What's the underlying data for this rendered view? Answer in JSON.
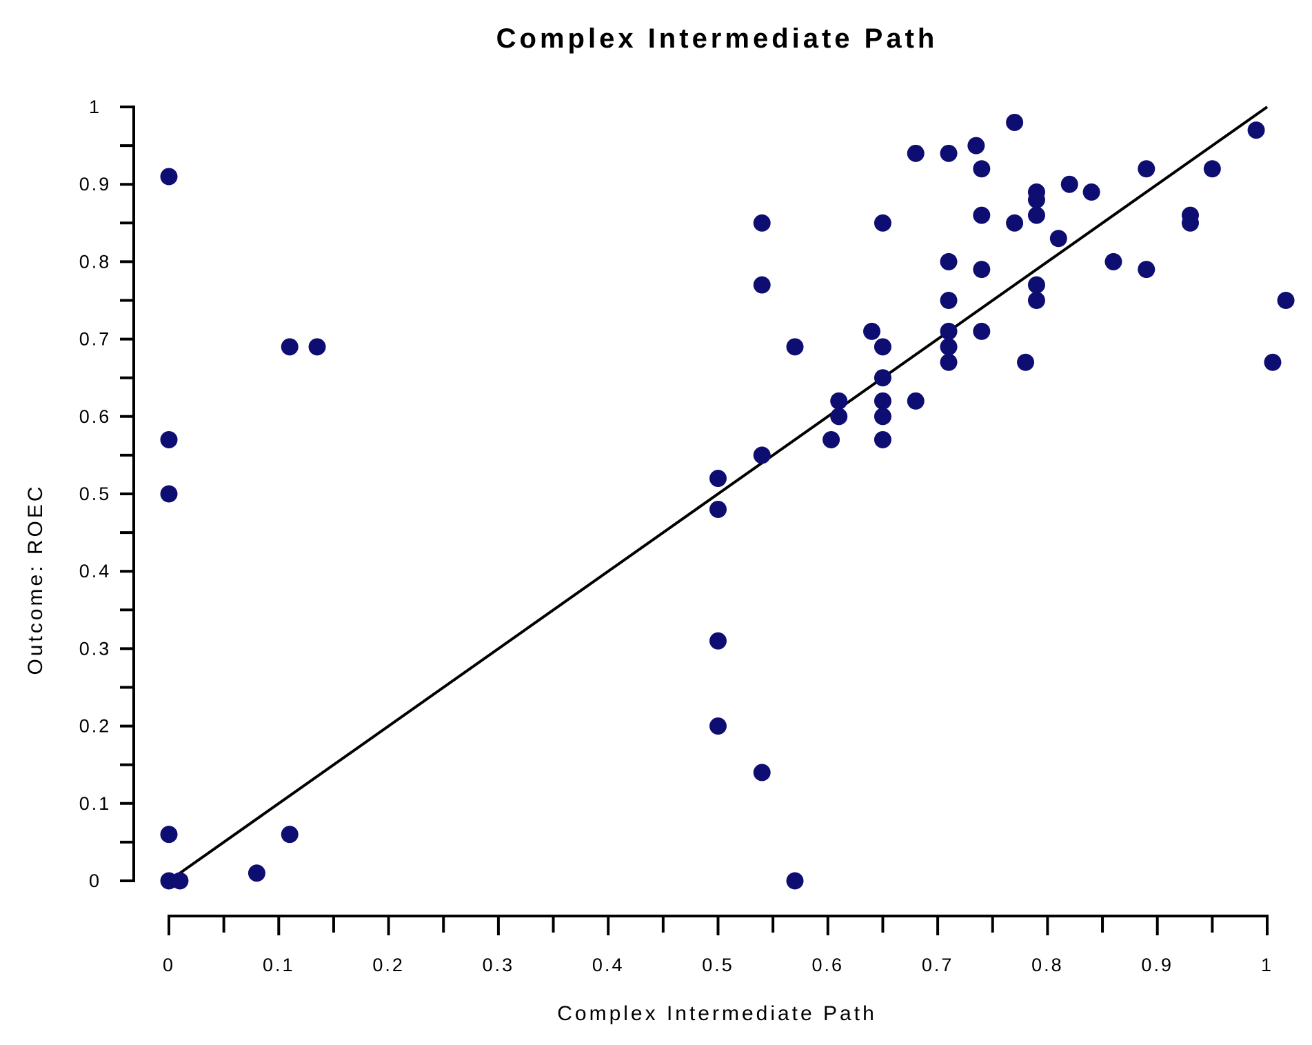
{
  "chart_data": {
    "type": "scatter",
    "title": "Complex Intermediate Path",
    "xlabel": "Complex Intermediate Path",
    "ylabel": "Outcome: ROEC",
    "xlim": [
      0,
      1
    ],
    "ylim": [
      0,
      1
    ],
    "x_ticks": [
      "0",
      "0.1",
      "0.2",
      "0.3",
      "0.4",
      "0.5",
      "0.6",
      "0.7",
      "0.8",
      "0.9",
      "1"
    ],
    "y_ticks": [
      "0",
      "0.1",
      "0.2",
      "0.3",
      "0.4",
      "0.5",
      "0.6",
      "0.7",
      "0.8",
      "0.9",
      "1"
    ],
    "grid": false,
    "legend": "none",
    "marker_color": "#0d0d72",
    "line_color": "#000000",
    "fit_line": [
      [
        0,
        0
      ],
      [
        1,
        1
      ]
    ],
    "points": [
      [
        0,
        0.91
      ],
      [
        0,
        0.57
      ],
      [
        0,
        0.5
      ],
      [
        0,
        0.06
      ],
      [
        0,
        0
      ],
      [
        0.01,
        0
      ],
      [
        0.08,
        0.01
      ],
      [
        0.11,
        0.06
      ],
      [
        0.11,
        0.69
      ],
      [
        0.135,
        0.69
      ],
      [
        0.5,
        0.52
      ],
      [
        0.5,
        0.48
      ],
      [
        0.5,
        0.31
      ],
      [
        0.5,
        0.2
      ],
      [
        0.54,
        0.85
      ],
      [
        0.54,
        0.77
      ],
      [
        0.54,
        0.55
      ],
      [
        0.54,
        0.14
      ],
      [
        0.57,
        0.69
      ],
      [
        0.57,
        0
      ],
      [
        0.603,
        0.57
      ],
      [
        0.61,
        0.62
      ],
      [
        0.61,
        0.6
      ],
      [
        0.64,
        0.71
      ],
      [
        0.65,
        0.85
      ],
      [
        0.65,
        0.69
      ],
      [
        0.65,
        0.65
      ],
      [
        0.65,
        0.62
      ],
      [
        0.65,
        0.6
      ],
      [
        0.65,
        0.57
      ],
      [
        0.68,
        0.94
      ],
      [
        0.68,
        0.62
      ],
      [
        0.71,
        0.94
      ],
      [
        0.71,
        0.8
      ],
      [
        0.71,
        0.75
      ],
      [
        0.71,
        0.71
      ],
      [
        0.71,
        0.69
      ],
      [
        0.71,
        0.67
      ],
      [
        0.735,
        0.95
      ],
      [
        0.74,
        0.92
      ],
      [
        0.74,
        0.86
      ],
      [
        0.74,
        0.79
      ],
      [
        0.74,
        0.71
      ],
      [
        0.77,
        0.98
      ],
      [
        0.77,
        0.85
      ],
      [
        0.78,
        0.67
      ],
      [
        0.79,
        0.89
      ],
      [
        0.79,
        0.88
      ],
      [
        0.79,
        0.86
      ],
      [
        0.79,
        0.77
      ],
      [
        0.79,
        0.75
      ],
      [
        0.81,
        0.83
      ],
      [
        0.82,
        0.9
      ],
      [
        0.84,
        0.89
      ],
      [
        0.86,
        0.8
      ],
      [
        0.89,
        0.92
      ],
      [
        0.89,
        0.79
      ],
      [
        0.93,
        0.86
      ],
      [
        0.93,
        0.85
      ],
      [
        0.95,
        0.92
      ],
      [
        0.99,
        0.97
      ],
      [
        1.005,
        0.67
      ],
      [
        1.017,
        0.75
      ]
    ]
  }
}
